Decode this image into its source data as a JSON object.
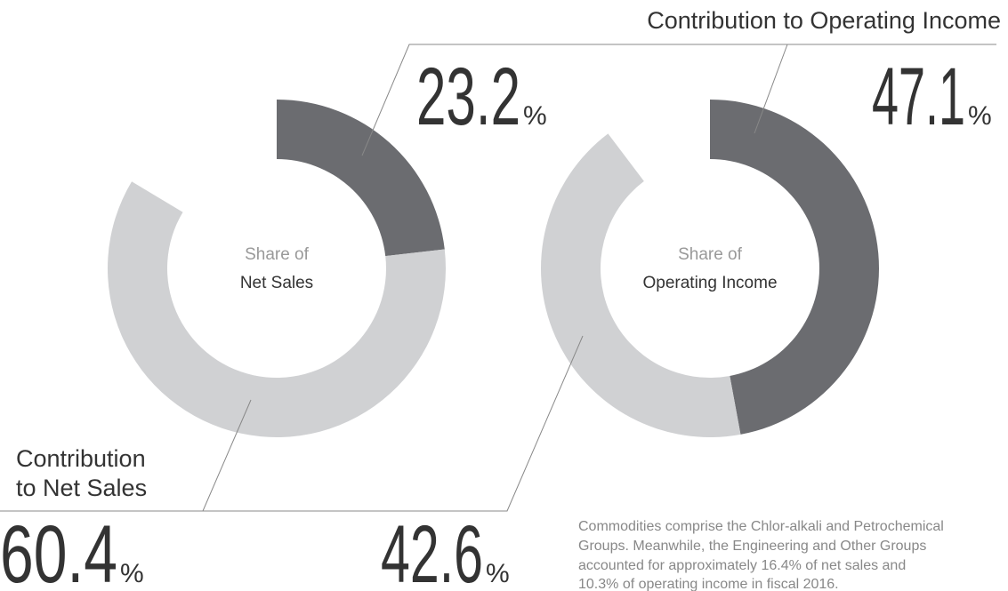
{
  "chart_data": [
    {
      "type": "donut",
      "center_label": [
        "Share of",
        "Net Sales"
      ],
      "values": [
        23.2,
        60.4
      ],
      "colors": [
        "#6b6c70",
        "#d0d1d3"
      ],
      "unit": "%"
    },
    {
      "type": "donut",
      "center_label": [
        "Share of",
        "Operating Income"
      ],
      "values": [
        47.1,
        42.6
      ],
      "colors": [
        "#6b6c70",
        "#d0d1d3"
      ],
      "unit": "%"
    }
  ],
  "labels": {
    "top": "Contribution to Operating Income",
    "bottom": [
      "Contribution",
      "to Net Sales"
    ]
  },
  "note": [
    "Commodities comprise the Chlor-alkali and Petrochemical",
    "Groups. Meanwhile, the Engineering and Other Groups",
    "accounted for approximately 16.4% of net sales and",
    "10.3% of operating income in fiscal 2016."
  ]
}
